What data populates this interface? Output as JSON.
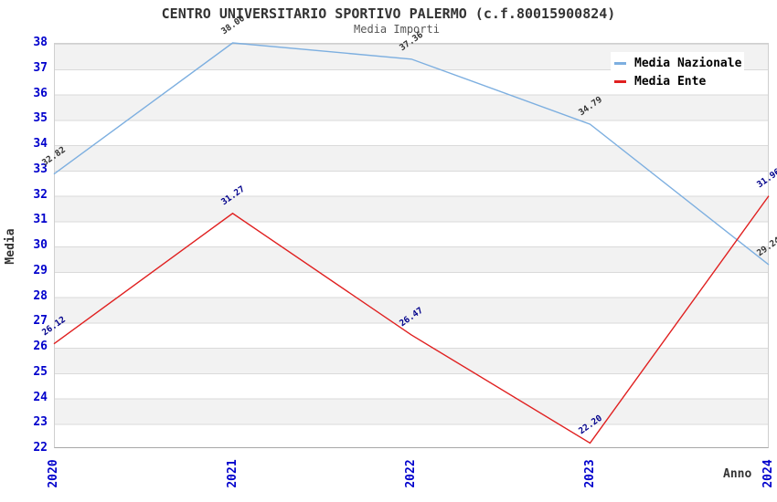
{
  "title": "CENTRO UNIVERSITARIO SPORTIVO PALERMO (c.f.80015900824)",
  "subtitle": "Media Importi",
  "axes": {
    "y_label": "Media",
    "x_label": "Anno",
    "y_ticks": [
      38,
      37,
      36,
      35,
      34,
      33,
      32,
      31,
      30,
      29,
      28,
      27,
      26,
      25,
      24,
      23,
      22
    ],
    "x_ticks": [
      "2020",
      "2021",
      "2022",
      "2023",
      "2024"
    ]
  },
  "legend": {
    "position": "top-right",
    "items": [
      {
        "label": "Media Nazionale",
        "color": "#7dafe0"
      },
      {
        "label": "Media Ente",
        "color": "#e02020"
      }
    ]
  },
  "colors": {
    "axis_tick_text": "#0000cc",
    "title_text": "#333333",
    "subtitle_text": "#555555",
    "band_gray": "#f2f2f2",
    "gridline": "#dadada"
  },
  "chart_data": {
    "type": "line",
    "title": "CENTRO UNIVERSITARIO SPORTIVO PALERMO (c.f.80015900824)",
    "subtitle": "Media Importi",
    "xlabel": "Anno",
    "ylabel": "Media",
    "x": [
      2020,
      2021,
      2022,
      2023,
      2024
    ],
    "ylim": [
      22,
      38
    ],
    "grid": "horizontal-bands",
    "legend_position": "top-right",
    "series": [
      {
        "name": "Media Nazionale",
        "color": "#7dafe0",
        "label_color": "#333333",
        "values": [
          32.82,
          38.0,
          37.36,
          34.79,
          29.24
        ]
      },
      {
        "name": "Media Ente",
        "color": "#e02020",
        "label_color": "#00008b",
        "values": [
          26.12,
          31.27,
          26.47,
          22.2,
          31.96
        ]
      }
    ]
  }
}
